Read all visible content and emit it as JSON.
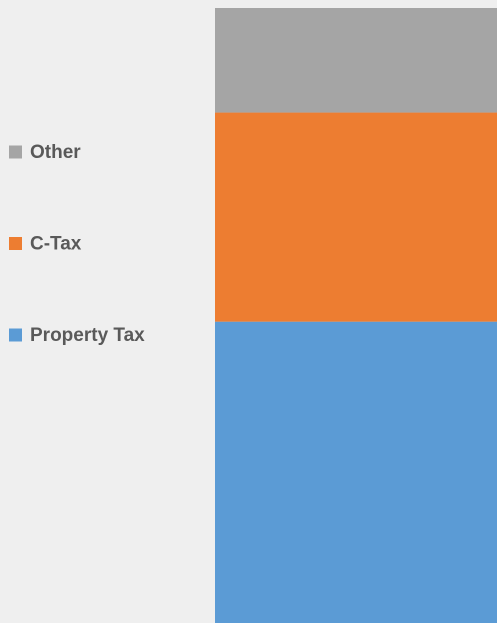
{
  "chart_data": {
    "type": "bar",
    "stacked": true,
    "categories": [
      null
    ],
    "series": [
      {
        "name": "Property Tax",
        "color": "#5b9bd5",
        "values": [
          49
        ]
      },
      {
        "name": "C-Tax",
        "color": "#ed7d31",
        "values": [
          34
        ]
      },
      {
        "name": "Other",
        "color": "#a5a5a5",
        "values": [
          17
        ]
      }
    ],
    "ylim": [
      0,
      100
    ],
    "legend": "left"
  }
}
